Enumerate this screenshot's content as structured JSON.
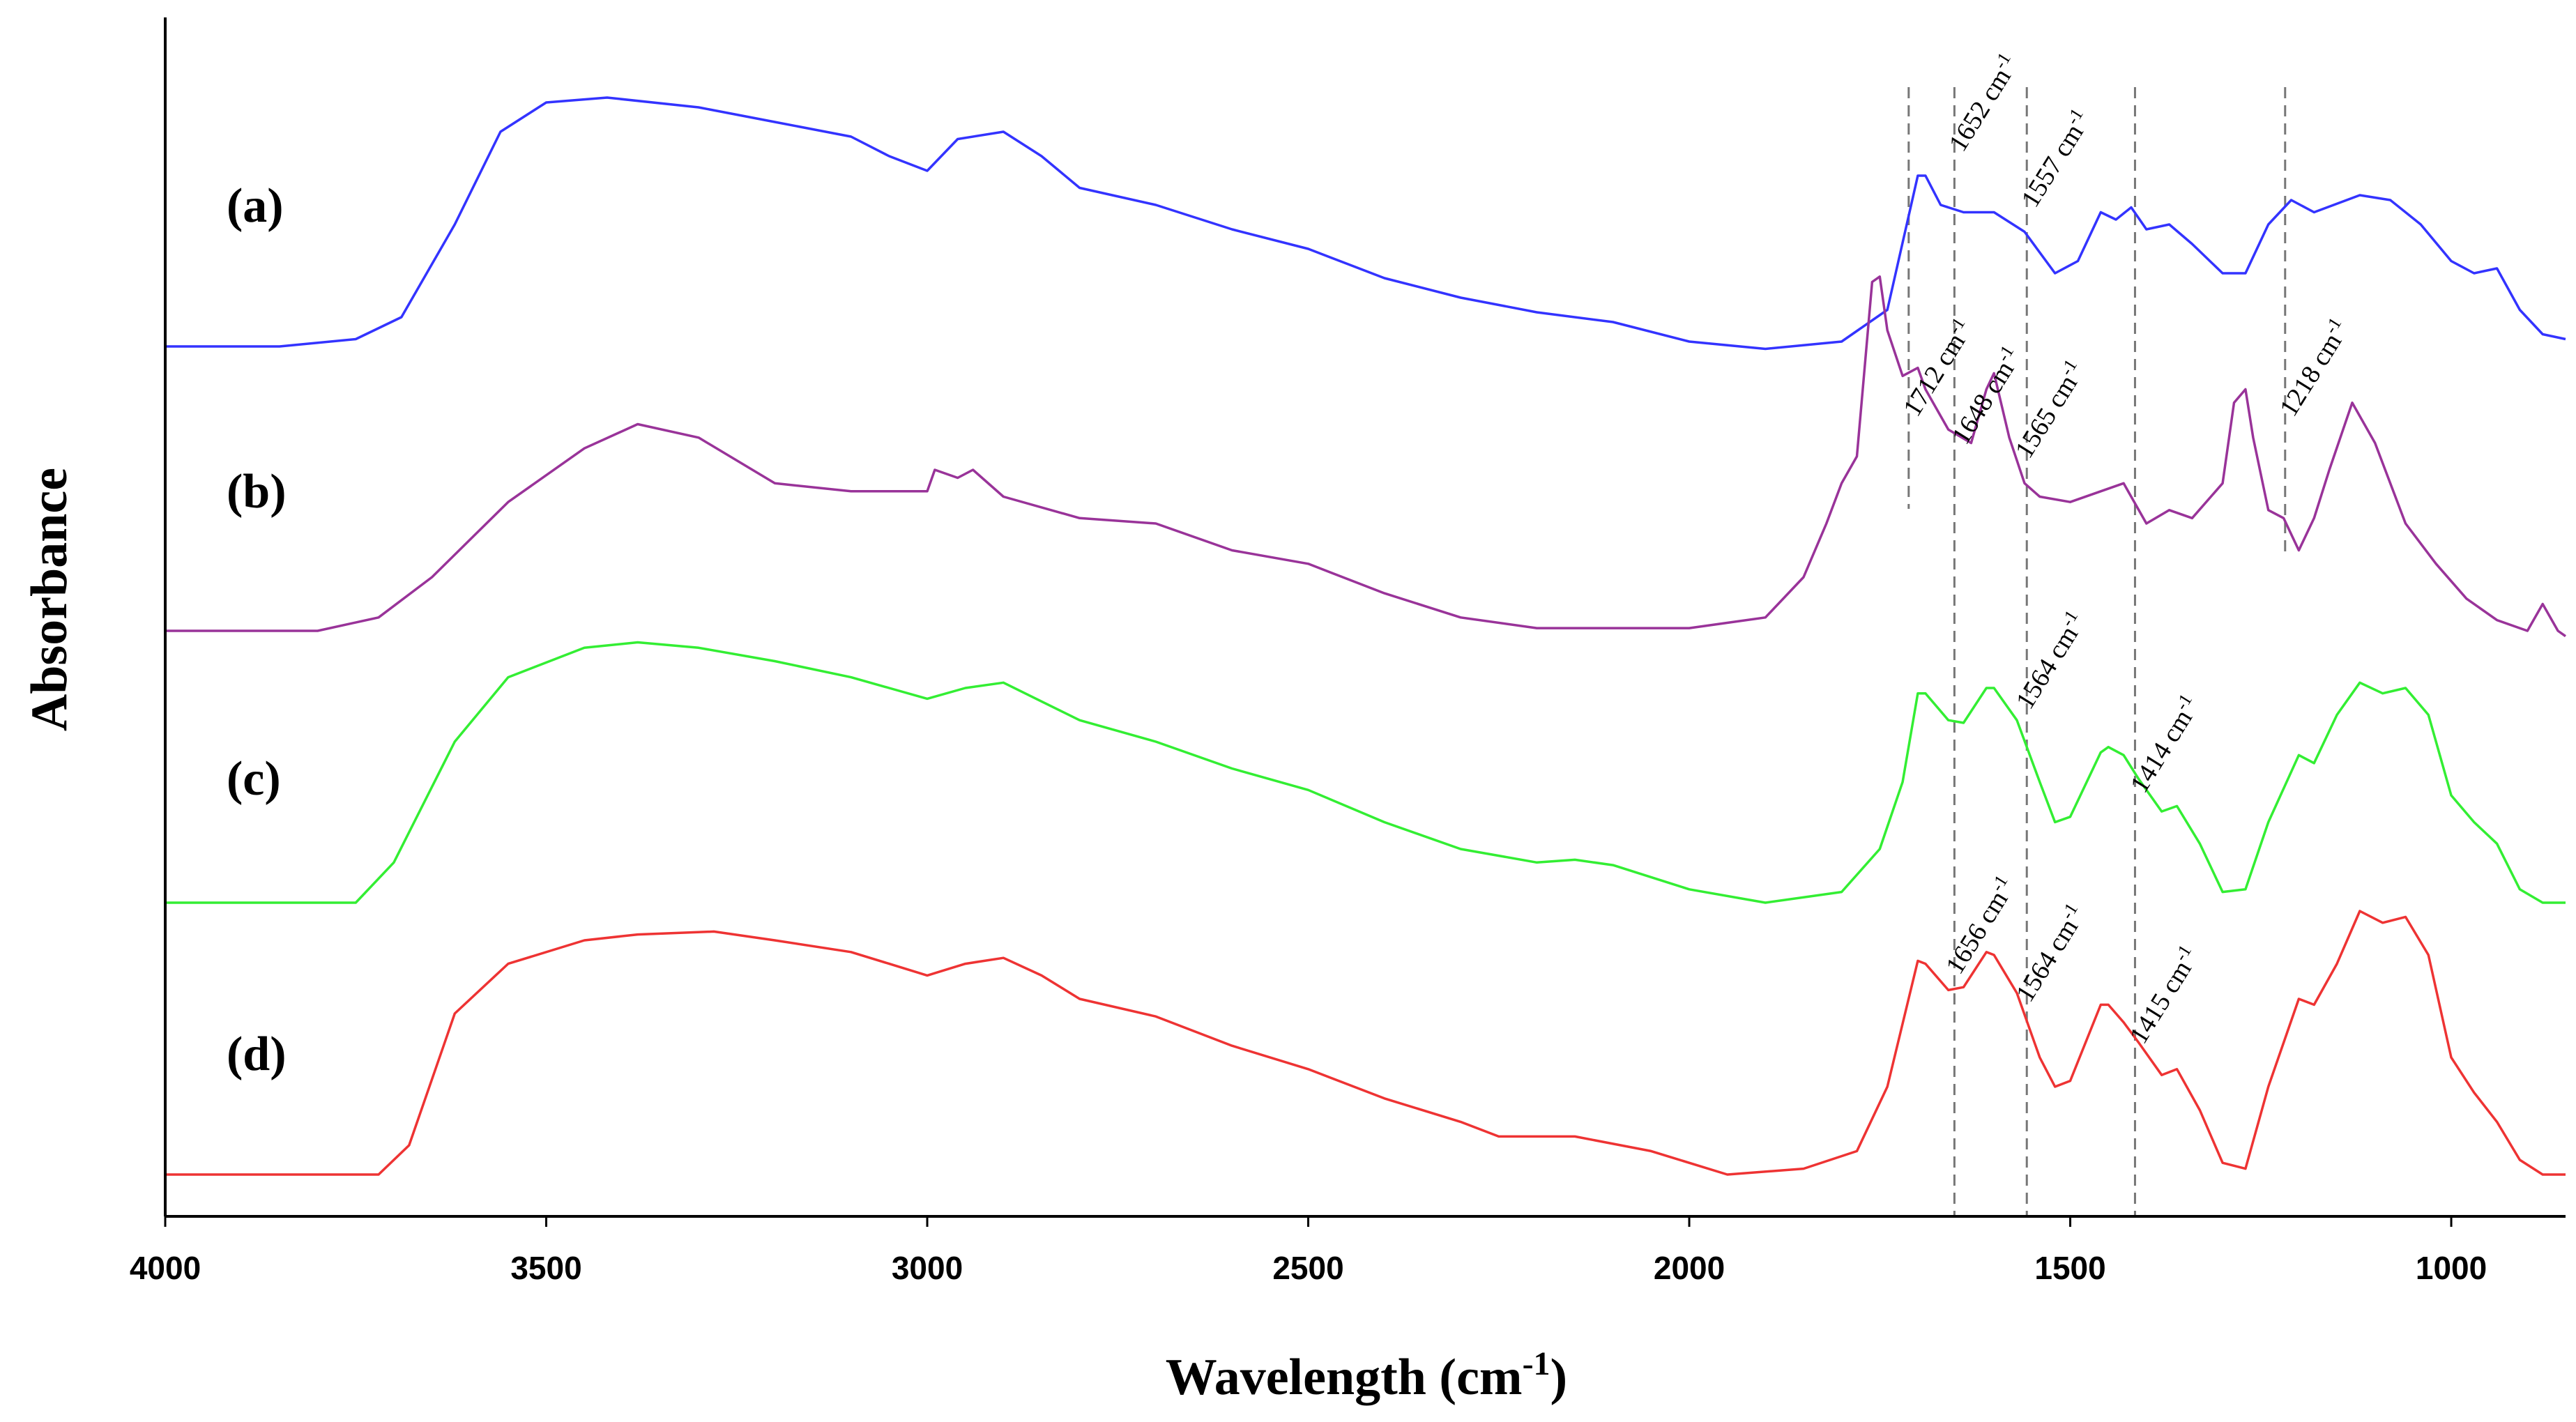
{
  "chart_data": {
    "type": "line",
    "title": "",
    "xlabel": "Wavelength",
    "xlabel_unit": "(cm",
    "xlabel_unit_exp": "-1",
    "xlabel_unit_close": ")",
    "ylabel": "Absorbance",
    "xlim": [
      4000,
      850
    ],
    "x_reversed": true,
    "y_ticks_shown": false,
    "x_ticks": [
      4000,
      3500,
      3000,
      2500,
      2000,
      1500,
      1000
    ],
    "reference_lines_cm": [
      1712,
      1652,
      1557,
      1415,
      1218
    ],
    "series": [
      {
        "name": "(a)",
        "color": "#3333ff",
        "baseline": 0.0,
        "scale": 1.0,
        "points": [
          [
            4000,
            0.0
          ],
          [
            3850,
            0.0
          ],
          [
            3750,
            0.03
          ],
          [
            3690,
            0.12
          ],
          [
            3620,
            0.5
          ],
          [
            3560,
            0.88
          ],
          [
            3500,
            1.0
          ],
          [
            3420,
            1.02
          ],
          [
            3300,
            0.98
          ],
          [
            3200,
            0.92
          ],
          [
            3100,
            0.86
          ],
          [
            3050,
            0.78
          ],
          [
            3000,
            0.72
          ],
          [
            2960,
            0.85
          ],
          [
            2900,
            0.88
          ],
          [
            2850,
            0.78
          ],
          [
            2800,
            0.65
          ],
          [
            2700,
            0.58
          ],
          [
            2600,
            0.48
          ],
          [
            2500,
            0.4
          ],
          [
            2400,
            0.28
          ],
          [
            2300,
            0.2
          ],
          [
            2200,
            0.14
          ],
          [
            2100,
            0.1
          ],
          [
            2000,
            0.02
          ],
          [
            1900,
            -0.01
          ],
          [
            1800,
            0.02
          ],
          [
            1740,
            0.15
          ],
          [
            1700,
            0.7
          ],
          [
            1690,
            0.7
          ],
          [
            1670,
            0.58
          ],
          [
            1640,
            0.55
          ],
          [
            1600,
            0.55
          ],
          [
            1560,
            0.47
          ],
          [
            1520,
            0.3
          ],
          [
            1490,
            0.35
          ],
          [
            1460,
            0.55
          ],
          [
            1440,
            0.52
          ],
          [
            1420,
            0.57
          ],
          [
            1400,
            0.48
          ],
          [
            1370,
            0.5
          ],
          [
            1340,
            0.42
          ],
          [
            1300,
            0.3
          ],
          [
            1270,
            0.3
          ],
          [
            1240,
            0.5
          ],
          [
            1210,
            0.6
          ],
          [
            1180,
            0.55
          ],
          [
            1120,
            0.62
          ],
          [
            1080,
            0.6
          ],
          [
            1040,
            0.5
          ],
          [
            1000,
            0.35
          ],
          [
            970,
            0.3
          ],
          [
            940,
            0.32
          ],
          [
            910,
            0.15
          ],
          [
            880,
            0.05
          ],
          [
            850,
            0.03
          ]
        ]
      },
      {
        "name": "(b)",
        "color": "#993399",
        "baseline": 0.0,
        "scale": 1.0,
        "points": [
          [
            4000,
            0.0
          ],
          [
            3800,
            0.0
          ],
          [
            3720,
            0.05
          ],
          [
            3650,
            0.2
          ],
          [
            3550,
            0.48
          ],
          [
            3450,
            0.68
          ],
          [
            3380,
            0.77
          ],
          [
            3300,
            0.72
          ],
          [
            3200,
            0.55
          ],
          [
            3100,
            0.52
          ],
          [
            3000,
            0.52
          ],
          [
            2990,
            0.6
          ],
          [
            2960,
            0.57
          ],
          [
            2940,
            0.6
          ],
          [
            2900,
            0.5
          ],
          [
            2800,
            0.42
          ],
          [
            2700,
            0.4
          ],
          [
            2600,
            0.3
          ],
          [
            2500,
            0.25
          ],
          [
            2400,
            0.14
          ],
          [
            2300,
            0.05
          ],
          [
            2200,
            0.01
          ],
          [
            2000,
            0.01
          ],
          [
            1900,
            0.05
          ],
          [
            1850,
            0.2
          ],
          [
            1820,
            0.4
          ],
          [
            1800,
            0.55
          ],
          [
            1780,
            0.65
          ],
          [
            1760,
            1.3
          ],
          [
            1750,
            1.32
          ],
          [
            1740,
            1.12
          ],
          [
            1720,
            0.95
          ],
          [
            1700,
            0.98
          ],
          [
            1690,
            0.9
          ],
          [
            1660,
            0.75
          ],
          [
            1630,
            0.7
          ],
          [
            1610,
            0.9
          ],
          [
            1600,
            0.96
          ],
          [
            1580,
            0.72
          ],
          [
            1560,
            0.55
          ],
          [
            1540,
            0.5
          ],
          [
            1500,
            0.48
          ],
          [
            1460,
            0.52
          ],
          [
            1430,
            0.55
          ],
          [
            1400,
            0.4
          ],
          [
            1370,
            0.45
          ],
          [
            1340,
            0.42
          ],
          [
            1300,
            0.55
          ],
          [
            1285,
            0.85
          ],
          [
            1270,
            0.9
          ],
          [
            1260,
            0.72
          ],
          [
            1240,
            0.45
          ],
          [
            1220,
            0.42
          ],
          [
            1200,
            0.3
          ],
          [
            1180,
            0.42
          ],
          [
            1160,
            0.6
          ],
          [
            1130,
            0.85
          ],
          [
            1100,
            0.7
          ],
          [
            1060,
            0.4
          ],
          [
            1020,
            0.25
          ],
          [
            980,
            0.12
          ],
          [
            940,
            0.04
          ],
          [
            900,
            0.0
          ],
          [
            880,
            0.1
          ],
          [
            860,
            0.0
          ],
          [
            850,
            -0.02
          ]
        ]
      },
      {
        "name": "(c)",
        "color": "#33ee33",
        "baseline": 0.0,
        "scale": 1.0,
        "points": [
          [
            4000,
            0.0
          ],
          [
            3850,
            0.0
          ],
          [
            3750,
            0.0
          ],
          [
            3700,
            0.15
          ],
          [
            3620,
            0.6
          ],
          [
            3550,
            0.84
          ],
          [
            3450,
            0.95
          ],
          [
            3380,
            0.97
          ],
          [
            3300,
            0.95
          ],
          [
            3200,
            0.9
          ],
          [
            3100,
            0.84
          ],
          [
            3050,
            0.8
          ],
          [
            3000,
            0.76
          ],
          [
            2950,
            0.8
          ],
          [
            2900,
            0.82
          ],
          [
            2850,
            0.75
          ],
          [
            2800,
            0.68
          ],
          [
            2700,
            0.6
          ],
          [
            2600,
            0.5
          ],
          [
            2500,
            0.42
          ],
          [
            2400,
            0.3
          ],
          [
            2300,
            0.2
          ],
          [
            2200,
            0.15
          ],
          [
            2150,
            0.16
          ],
          [
            2100,
            0.14
          ],
          [
            2000,
            0.05
          ],
          [
            1900,
            0.0
          ],
          [
            1800,
            0.04
          ],
          [
            1750,
            0.2
          ],
          [
            1720,
            0.45
          ],
          [
            1700,
            0.78
          ],
          [
            1690,
            0.78
          ],
          [
            1660,
            0.68
          ],
          [
            1640,
            0.67
          ],
          [
            1610,
            0.8
          ],
          [
            1600,
            0.8
          ],
          [
            1570,
            0.68
          ],
          [
            1540,
            0.45
          ],
          [
            1520,
            0.3
          ],
          [
            1500,
            0.32
          ],
          [
            1460,
            0.56
          ],
          [
            1450,
            0.58
          ],
          [
            1430,
            0.55
          ],
          [
            1410,
            0.46
          ],
          [
            1380,
            0.34
          ],
          [
            1360,
            0.36
          ],
          [
            1330,
            0.22
          ],
          [
            1300,
            0.04
          ],
          [
            1270,
            0.05
          ],
          [
            1240,
            0.3
          ],
          [
            1200,
            0.55
          ],
          [
            1180,
            0.52
          ],
          [
            1150,
            0.7
          ],
          [
            1120,
            0.82
          ],
          [
            1090,
            0.78
          ],
          [
            1060,
            0.8
          ],
          [
            1030,
            0.7
          ],
          [
            1000,
            0.4
          ],
          [
            970,
            0.3
          ],
          [
            940,
            0.22
          ],
          [
            910,
            0.05
          ],
          [
            880,
            0.0
          ],
          [
            850,
            0.0
          ]
        ]
      },
      {
        "name": "(d)",
        "color": "#ee3333",
        "baseline": 0.0,
        "scale": 1.0,
        "points": [
          [
            4000,
            0.0
          ],
          [
            3850,
            0.0
          ],
          [
            3720,
            0.0
          ],
          [
            3680,
            0.1
          ],
          [
            3620,
            0.55
          ],
          [
            3550,
            0.72
          ],
          [
            3450,
            0.8
          ],
          [
            3380,
            0.82
          ],
          [
            3280,
            0.83
          ],
          [
            3200,
            0.8
          ],
          [
            3100,
            0.76
          ],
          [
            3050,
            0.72
          ],
          [
            3000,
            0.68
          ],
          [
            2950,
            0.72
          ],
          [
            2900,
            0.74
          ],
          [
            2850,
            0.68
          ],
          [
            2800,
            0.6
          ],
          [
            2700,
            0.54
          ],
          [
            2600,
            0.44
          ],
          [
            2500,
            0.36
          ],
          [
            2400,
            0.26
          ],
          [
            2300,
            0.18
          ],
          [
            2250,
            0.13
          ],
          [
            2150,
            0.13
          ],
          [
            2050,
            0.08
          ],
          [
            1950,
            0.0
          ],
          [
            1850,
            0.02
          ],
          [
            1780,
            0.08
          ],
          [
            1740,
            0.3
          ],
          [
            1700,
            0.73
          ],
          [
            1690,
            0.72
          ],
          [
            1660,
            0.63
          ],
          [
            1640,
            0.64
          ],
          [
            1610,
            0.76
          ],
          [
            1600,
            0.75
          ],
          [
            1570,
            0.62
          ],
          [
            1540,
            0.4
          ],
          [
            1520,
            0.3
          ],
          [
            1500,
            0.32
          ],
          [
            1460,
            0.58
          ],
          [
            1450,
            0.58
          ],
          [
            1430,
            0.52
          ],
          [
            1410,
            0.45
          ],
          [
            1380,
            0.34
          ],
          [
            1360,
            0.36
          ],
          [
            1330,
            0.22
          ],
          [
            1300,
            0.04
          ],
          [
            1270,
            0.02
          ],
          [
            1240,
            0.3
          ],
          [
            1200,
            0.6
          ],
          [
            1180,
            0.58
          ],
          [
            1150,
            0.72
          ],
          [
            1120,
            0.9
          ],
          [
            1090,
            0.86
          ],
          [
            1060,
            0.88
          ],
          [
            1030,
            0.75
          ],
          [
            1000,
            0.4
          ],
          [
            970,
            0.28
          ],
          [
            940,
            0.18
          ],
          [
            910,
            0.05
          ],
          [
            880,
            0.0
          ],
          [
            850,
            0.0
          ]
        ]
      }
    ],
    "annotations": [
      {
        "text": "1652 cm",
        "sup": "-1",
        "series": "(a)",
        "x": 1652
      },
      {
        "text": "1557 cm",
        "sup": "-1",
        "series": "(a)",
        "x": 1557
      },
      {
        "text": "1712 cm",
        "sup": "-1",
        "series": "(b)",
        "x": 1712
      },
      {
        "text": "1648 cm",
        "sup": "-1",
        "series": "(b)",
        "x": 1648
      },
      {
        "text": "1565 cm",
        "sup": "-1",
        "series": "(b)",
        "x": 1565
      },
      {
        "text": "1218 cm",
        "sup": "-1",
        "series": "(b)",
        "x": 1218
      },
      {
        "text": "1564 cm",
        "sup": "-1",
        "series": "(c)",
        "x": 1564
      },
      {
        "text": "1414 cm",
        "sup": "-1",
        "series": "(c)",
        "x": 1414
      },
      {
        "text": "1656 cm",
        "sup": "-1",
        "series": "(d)",
        "x": 1656
      },
      {
        "text": "1564 cm",
        "sup": "-1",
        "series": "(d)",
        "x": 1564
      },
      {
        "text": "1415 cm",
        "sup": "-1",
        "series": "(d)",
        "x": 1415
      }
    ]
  }
}
